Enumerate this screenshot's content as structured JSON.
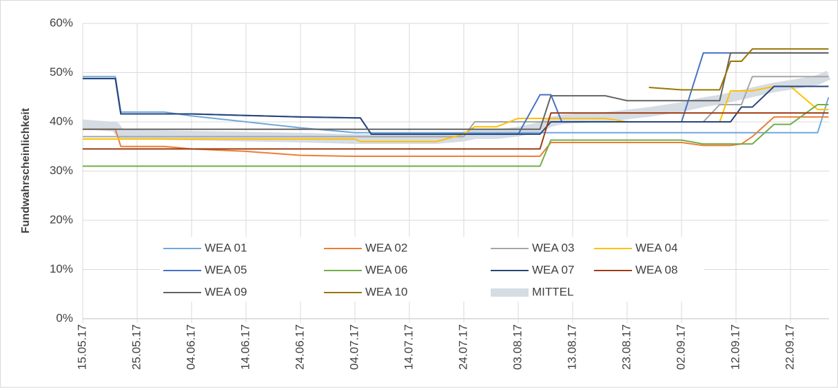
{
  "chart_data": {
    "type": "line",
    "y_label": "Fundwahrscheinlichkeit",
    "x": [
      "15.05.17",
      "21.05.17",
      "22.05.17",
      "30.05.17",
      "04.06.17",
      "14.06.17",
      "24.06.17",
      "04.07.17",
      "05.07.17",
      "07.07.17",
      "14.07.17",
      "19.07.17",
      "24.07.17",
      "26.07.17",
      "30.07.17",
      "03.08.17",
      "07.08.17",
      "09.08.17",
      "11.08.17",
      "19.08.17",
      "23.08.17",
      "27.08.17",
      "02.09.17",
      "06.09.17",
      "09.09.17",
      "11.09.17",
      "13.09.17",
      "15.09.17",
      "19.09.17",
      "22.09.17",
      "27.09.17",
      "29.09.17"
    ],
    "xticks": [
      "15.05.17",
      "25.05.17",
      "04.06.17",
      "14.06.17",
      "24.06.17",
      "04.07.17",
      "14.07.17",
      "24.07.17",
      "03.08.17",
      "13.08.17",
      "23.08.17",
      "02.09.17",
      "12.09.17",
      "22.09.17"
    ],
    "ylim": [
      0,
      60
    ],
    "yticks": [
      {
        "value": 0,
        "label": "0%"
      },
      {
        "value": 10,
        "label": "10%"
      },
      {
        "value": 20,
        "label": "20%"
      },
      {
        "value": 30,
        "label": "30%"
      },
      {
        "value": 40,
        "label": "40%"
      },
      {
        "value": 50,
        "label": "50%"
      },
      {
        "value": 60,
        "label": "60%"
      }
    ],
    "grid": true,
    "series": [
      {
        "name": "WEA 01",
        "color": "#6fa8dc",
        "values": [
          49.2,
          49.2,
          42,
          42,
          41.2,
          40,
          38.8,
          37.8,
          37.8,
          37.8,
          37.8,
          37.8,
          37.8,
          37.8,
          37.8,
          37.8,
          37.8,
          37.8,
          37.8,
          37.8,
          37.8,
          37.8,
          37.8,
          37.8,
          37.8,
          37.8,
          37.8,
          37.8,
          37.8,
          37.8,
          37.8,
          45
        ]
      },
      {
        "name": "WEA 02",
        "color": "#ed7d31",
        "values": [
          38.5,
          38.5,
          35,
          35,
          34.5,
          34,
          33.2,
          33,
          33,
          33,
          33,
          33,
          33,
          33,
          33,
          33,
          33,
          35.8,
          35.8,
          35.8,
          35.8,
          35.8,
          35.8,
          35.2,
          35.2,
          35.2,
          35.5,
          37,
          41,
          41,
          41,
          41
        ]
      },
      {
        "name": "WEA 03",
        "color": "#a5a5a5",
        "values": [
          37,
          37,
          37,
          37,
          37,
          37,
          37,
          37,
          37,
          37,
          37,
          37,
          37,
          40,
          40,
          40,
          40,
          40,
          40,
          40,
          40,
          40,
          40,
          40,
          43.5,
          43.5,
          43.5,
          49.2,
          49.2,
          49.2,
          49.2,
          49.2
        ]
      },
      {
        "name": "WEA 04",
        "color": "#ffc000",
        "values": [
          36.5,
          36.5,
          36.5,
          36.5,
          36.5,
          36.5,
          36.5,
          36.5,
          36,
          36,
          36,
          36,
          37.5,
          39,
          39,
          40.7,
          40.7,
          40.7,
          40.7,
          40.7,
          40,
          40,
          40,
          40,
          40,
          46.3,
          46.3,
          46.3,
          47.2,
          47.2,
          42.5,
          42.5
        ]
      },
      {
        "name": "WEA 05",
        "color": "#4472c4",
        "values": [
          48.8,
          48.8,
          41.6,
          41.6,
          41.6,
          41.3,
          41,
          40.8,
          40.8,
          37.5,
          37.5,
          37.5,
          37.5,
          37.5,
          37.5,
          37.5,
          45.5,
          45.5,
          40,
          40,
          40,
          40,
          40,
          54,
          54,
          54,
          54,
          54,
          54,
          54,
          54,
          54
        ]
      },
      {
        "name": "WEA 06",
        "color": "#70ad47",
        "values": [
          31,
          31,
          31,
          31,
          31,
          31,
          31,
          31,
          31,
          31,
          31,
          31,
          31,
          31,
          31,
          31,
          31,
          36.3,
          36.3,
          36.3,
          36.3,
          36.3,
          36.3,
          35.5,
          35.5,
          35.5,
          35.5,
          35.5,
          39.5,
          39.5,
          43.5,
          43.5
        ]
      },
      {
        "name": "WEA 07",
        "color": "#264478",
        "values": [
          48.8,
          48.8,
          41.6,
          41.6,
          41.6,
          41.3,
          41,
          40.8,
          40.8,
          37.5,
          37.5,
          37.5,
          37.5,
          37.5,
          37.5,
          37.5,
          37.5,
          40,
          40,
          40,
          40,
          40,
          40,
          40,
          40,
          40,
          43,
          43,
          47.2,
          47.2,
          47.2,
          47.2
        ]
      },
      {
        "name": "WEA 08",
        "color": "#9e3a13",
        "values": [
          34.5,
          34.5,
          34.5,
          34.5,
          34.5,
          34.5,
          34.5,
          34.5,
          34.5,
          34.5,
          34.5,
          34.5,
          34.5,
          34.5,
          34.5,
          34.5,
          34.5,
          41.8,
          41.8,
          41.8,
          41.8,
          41.8,
          41.8,
          41.8,
          41.8,
          41.8,
          41.8,
          41.8,
          41.8,
          41.8,
          41.8,
          41.8
        ]
      },
      {
        "name": "WEA 09",
        "color": "#636363",
        "values": [
          38.5,
          38.5,
          38.5,
          38.5,
          38.5,
          38.5,
          38.5,
          38.5,
          38.5,
          38.5,
          38.5,
          38.5,
          38.5,
          38.5,
          38.5,
          38.5,
          38.5,
          45.3,
          45.3,
          45.3,
          44.3,
          44.3,
          44.3,
          44.3,
          44.3,
          54,
          54,
          54,
          54,
          54,
          54,
          54
        ]
      },
      {
        "name": "WEA 10",
        "color": "#997300",
        "values": [
          null,
          null,
          null,
          null,
          null,
          null,
          null,
          null,
          null,
          null,
          null,
          null,
          null,
          null,
          null,
          null,
          null,
          null,
          null,
          null,
          null,
          47,
          46.5,
          46.5,
          46.5,
          52.3,
          52.3,
          54.8,
          54.8,
          54.8,
          54.8,
          54.8
        ]
      },
      {
        "name": "MITTEL",
        "color": "#d6dce4",
        "values": [
          39.5,
          39,
          37.5,
          37.3,
          37.2,
          37,
          36.8,
          36.5,
          36.5,
          36.5,
          36.5,
          36.5,
          37,
          37.5,
          37.5,
          38,
          39,
          40,
          40.5,
          41,
          41.5,
          42,
          43,
          44,
          44.5,
          45,
          45.5,
          46,
          47,
          47.5,
          48.5,
          49.5
        ]
      }
    ]
  }
}
